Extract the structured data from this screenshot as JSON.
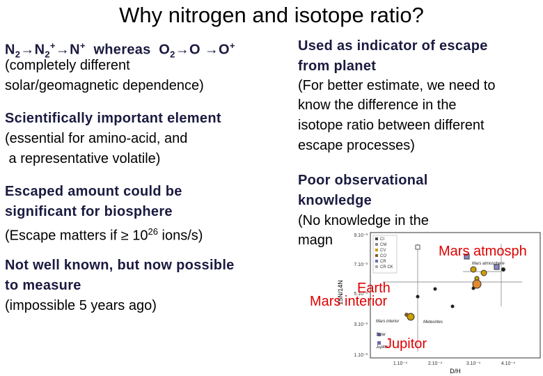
{
  "title": "Why nitrogen and isotope ratio?",
  "left": {
    "formula": [
      "N",
      "2",
      "→N",
      "2",
      "+",
      "→N",
      "+",
      "whereas  O",
      "2",
      "→O",
      "→O",
      "+"
    ],
    "blocks": [
      {
        "body": [
          "(completely different",
          "solar/geomagnetic dependence)"
        ]
      },
      {
        "heading": [
          "Scientifically important element"
        ],
        "body": [
          "(essential for amino-acid, and",
          " a representative volatile)"
        ]
      },
      {
        "heading": [
          "Escaped amount could be",
          "significant for biosphere"
        ],
        "body": [
          "(Escape matters if ≥ 10",
          "26",
          " ions/s)"
        ]
      },
      {
        "heading": [
          "Not well known, but now possible",
          "to measure"
        ],
        "body": [
          "(impossible 5 years ago)"
        ]
      }
    ]
  },
  "right": {
    "blocks": [
      {
        "heading": [
          "Used as indicator of escape",
          "from planet"
        ],
        "body": [
          "(For better estimate, we need to",
          "know the difference in the",
          "isotope ratio between different",
          "escape processes)"
        ]
      },
      {
        "heading": [
          "Poor observational",
          "knowledge"
        ],
        "body": [
          "(No knowledge in the",
          "magn"
        ]
      }
    ]
  },
  "figure": {
    "y_axis_label": "15N/14N",
    "x_axis_label": "D/H",
    "y_tick_labels": [
      "9.10⁻³",
      "7.10⁻³",
      "5.10⁻³",
      "3.10⁻³",
      "1.10⁻³"
    ],
    "x_tick_labels": [
      "1.10⁻⁴",
      "2.10⁻⁴",
      "3.10⁻⁴",
      "4.10⁻⁴"
    ],
    "legend": [
      "CI",
      "CM",
      "CV",
      "CO",
      "CR",
      "CR CK"
    ],
    "inner_labels": [
      "Mars atmosphere",
      "Mars interior",
      "Meteorites",
      "Solar",
      "Jupiter"
    ],
    "annotations": [
      "Mars atmosph",
      "Earth",
      "Mars interior",
      "Jupitor"
    ]
  }
}
